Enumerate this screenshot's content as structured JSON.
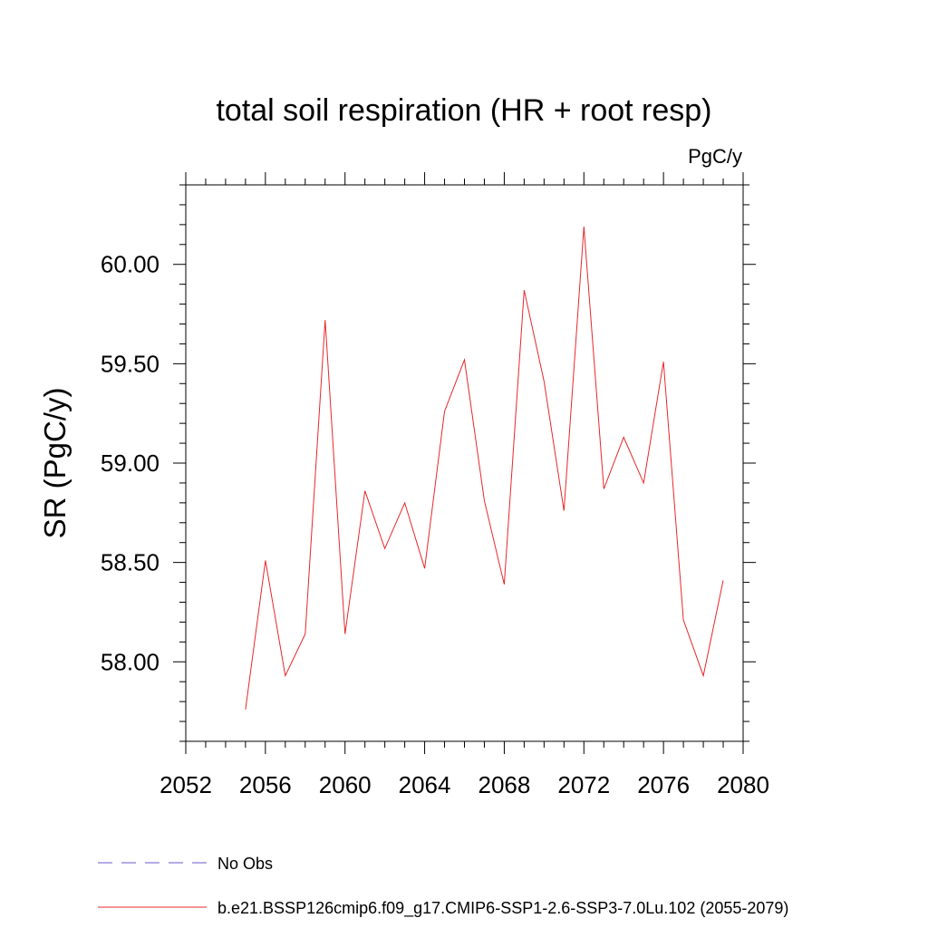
{
  "chart_data": {
    "type": "line",
    "title": "total soil respiration (HR + root resp)",
    "units": "PgC/y",
    "ylabel": "SR  (PgC/y)",
    "xlabel": "",
    "xlim": [
      2052,
      2080
    ],
    "ylim": [
      57.6,
      60.4
    ],
    "xticks": [
      2052,
      2056,
      2060,
      2064,
      2068,
      2072,
      2076,
      2080
    ],
    "xtick_labels": [
      "2052",
      "2056",
      "2060",
      "2064",
      "2068",
      "2072",
      "2076",
      "2080"
    ],
    "yticks": [
      58.0,
      58.5,
      59.0,
      59.5,
      60.0
    ],
    "ytick_labels": [
      "58.00",
      "58.50",
      "59.00",
      "59.50",
      "60.00"
    ],
    "grid": false,
    "legend_position": "bottom",
    "legend": [
      {
        "label": "No Obs",
        "color": "#6a5acd",
        "style": "dashed"
      },
      {
        "label": "b.e21.BSSP126cmip6.f09_g17.CMIP6-SSP1-2.6-SSP3-7.0Lu.102 (2055-2079)",
        "color": "#e8272a",
        "style": "solid"
      }
    ],
    "series": [
      {
        "name": "b.e21.BSSP126cmip6.f09_g17.CMIP6-SSP1-2.6-SSP3-7.0Lu.102 (2055-2079)",
        "color": "#e8272a",
        "x": [
          2055,
          2056,
          2057,
          2058,
          2059,
          2060,
          2061,
          2062,
          2063,
          2064,
          2065,
          2066,
          2067,
          2068,
          2069,
          2070,
          2071,
          2072,
          2073,
          2074,
          2075,
          2076,
          2077,
          2078,
          2079
        ],
        "y": [
          57.76,
          58.51,
          57.93,
          58.14,
          59.72,
          58.14,
          58.86,
          58.57,
          58.8,
          58.47,
          59.26,
          59.52,
          58.81,
          58.39,
          59.87,
          59.41,
          58.76,
          60.19,
          58.87,
          59.13,
          58.9,
          59.51,
          58.21,
          57.93,
          58.41
        ]
      }
    ]
  }
}
